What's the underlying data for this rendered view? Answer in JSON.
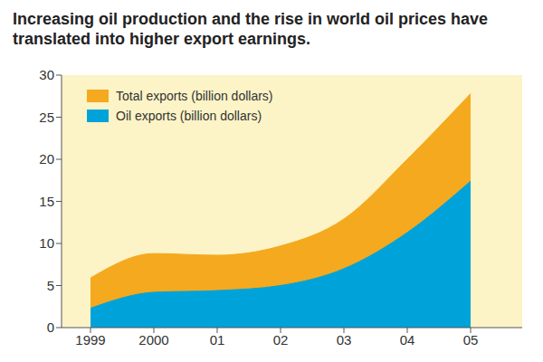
{
  "chart_data": {
    "type": "area",
    "title": "Increasing oil production and the rise in world oil prices have translated into higher export earnings.",
    "categories": [
      "1999",
      "2000",
      "01",
      "02",
      "03",
      "04",
      "05"
    ],
    "series": [
      {
        "name": "Total exports (billion dollars)",
        "color": "#f5a91e",
        "values": [
          5.9,
          8.8,
          8.6,
          9.7,
          12.9,
          20.0,
          27.8
        ]
      },
      {
        "name": "Oil exports (billion dollars)",
        "color": "#00a3d9",
        "values": [
          2.3,
          4.2,
          4.4,
          5.0,
          7.0,
          11.3,
          17.4
        ]
      }
    ],
    "ylim": [
      0,
      30
    ],
    "yticks": [
      0,
      5,
      10,
      15,
      20,
      25,
      30
    ],
    "legend": "upper left",
    "stacked": false,
    "grid": false
  }
}
